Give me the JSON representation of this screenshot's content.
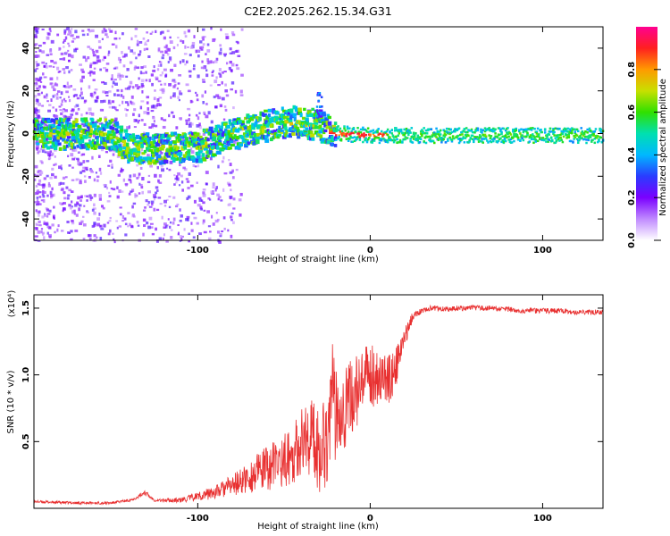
{
  "title": "C2E2.2025.262.15.34.G31",
  "chart_data": [
    {
      "type": "heatmap",
      "xlabel": "Height of straight line (km)",
      "ylabel": "Frequency (Hz)",
      "xlim": [
        -195,
        135
      ],
      "ylim": [
        -50,
        50
      ],
      "xticks": [
        -100,
        0,
        100
      ],
      "xtick_labels": [
        "-100",
        "0",
        "100"
      ],
      "yticks": [
        -40,
        -20,
        0,
        20,
        40
      ],
      "ytick_labels": [
        "-40",
        "-20",
        "0",
        "20",
        "40"
      ],
      "ridge": {
        "x": [
          -195,
          -150,
          -140,
          -120,
          -100,
          -80,
          -60,
          -45,
          -30,
          -20,
          0,
          50,
          135
        ],
        "y": [
          0,
          0,
          -7,
          -7,
          -6,
          0,
          4,
          6,
          4,
          0,
          -1,
          -1,
          -1
        ]
      },
      "colorbar": {
        "label": "Normalized spectral amplitude",
        "ticks": [
          0.0,
          0.2,
          0.4,
          0.6,
          0.8
        ],
        "tick_labels": [
          "0.0",
          "0.2",
          "0.4",
          "0.6",
          "0.8"
        ],
        "range": [
          0,
          1
        ],
        "colors": [
          "#ffffff",
          "#c08aff",
          "#7a00ff",
          "#2a3cff",
          "#00b8ff",
          "#00e0b0",
          "#30e000",
          "#c8e000",
          "#ff9a00",
          "#ff2020",
          "#ff0090"
        ]
      }
    },
    {
      "type": "line",
      "xlabel": "Height of straight line (km)",
      "ylabel": "SNR (10 * v/v)",
      "multiplier": "(x10⁴)",
      "xlim": [
        -195,
        135
      ],
      "ylim": [
        0,
        1.6
      ],
      "xticks": [
        -100,
        0,
        100
      ],
      "xtick_labels": [
        "-100",
        "0",
        "100"
      ],
      "yticks": [
        0.5,
        1.0,
        1.5
      ],
      "ytick_labels": [
        "0.5",
        "1.0",
        "1.5"
      ],
      "color": "#e83030",
      "series": [
        {
          "name": "SNR",
          "x": [
            -195,
            -170,
            -150,
            -140,
            -135,
            -131,
            -125,
            -110,
            -90,
            -75,
            -60,
            -50,
            -45,
            -40,
            -35,
            -30,
            -25,
            -22,
            -20,
            -18,
            -15,
            -10,
            -5,
            0,
            5,
            10,
            15,
            18,
            22,
            25,
            30,
            35,
            40,
            45,
            50,
            60,
            70,
            80,
            90,
            100,
            110,
            120,
            135
          ],
          "y": [
            0.05,
            0.04,
            0.04,
            0.06,
            0.08,
            0.12,
            0.06,
            0.06,
            0.12,
            0.2,
            0.3,
            0.36,
            0.4,
            0.5,
            0.55,
            0.45,
            0.55,
            0.85,
            0.7,
            0.8,
            0.75,
            0.85,
            0.9,
            1.0,
            1.0,
            0.95,
            1.05,
            1.2,
            1.35,
            1.45,
            1.48,
            1.5,
            1.5,
            1.49,
            1.5,
            1.5,
            1.5,
            1.49,
            1.48,
            1.48,
            1.48,
            1.47,
            1.47
          ],
          "noise": [
            0.01,
            0.01,
            0.01,
            0.01,
            0.01,
            0.02,
            0.01,
            0.02,
            0.05,
            0.1,
            0.17,
            0.2,
            0.22,
            0.25,
            0.3,
            0.35,
            0.38,
            0.4,
            0.38,
            0.35,
            0.32,
            0.3,
            0.28,
            0.25,
            0.22,
            0.2,
            0.15,
            0.1,
            0.06,
            0.03,
            0.02,
            0.02,
            0.02,
            0.02,
            0.02,
            0.02,
            0.02,
            0.02,
            0.02,
            0.02,
            0.02,
            0.02,
            0.02
          ]
        }
      ]
    }
  ]
}
